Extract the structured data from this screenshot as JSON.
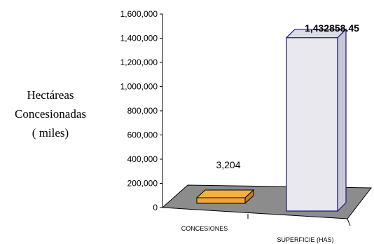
{
  "chart_data": {
    "type": "bar",
    "categories": [
      "CONCESIONES",
      "SUPERFICIE (HAS)"
    ],
    "values": [
      3204,
      1432858.45
    ],
    "value_labels": [
      "3,204",
      "1,432858.45"
    ],
    "ylabel_lines": [
      "Hectáreas",
      "Concesionadas",
      "( miles)"
    ],
    "ylim": [
      0,
      1600000
    ],
    "yticks": [
      0,
      200000,
      400000,
      600000,
      800000,
      1000000,
      1200000,
      1400000,
      1600000
    ],
    "ytick_labels": [
      "0",
      "200,000",
      "400,000",
      "600,000",
      "800,000",
      "1,000,000",
      "1,200,000",
      "1,400,000",
      "1,600,000"
    ],
    "style": "3d-column",
    "grid": false,
    "legend": "none",
    "colors": {
      "floor": "#8c8c8c",
      "concesiones_front": "#f2a33a",
      "concesiones_top": "#f5b041",
      "superficie_front": "#e8e8ee",
      "superficie_side": "#c8c8d4",
      "superficie_top": "#dcdce6",
      "outline": "#1a1a80"
    }
  }
}
